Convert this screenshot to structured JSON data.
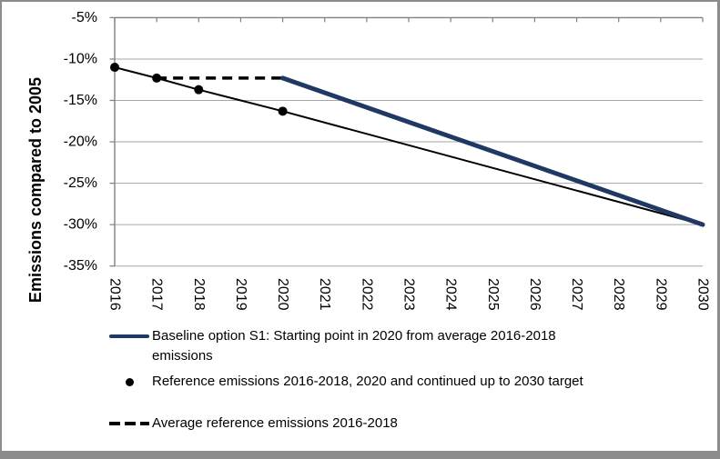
{
  "chart_data": {
    "type": "line",
    "title": "",
    "xlabel": "",
    "ylabel": "Emissions compared to 2005",
    "xlim": [
      2016,
      2030
    ],
    "ylim": [
      -35,
      -5
    ],
    "x_ticks": [
      2016,
      2017,
      2018,
      2019,
      2020,
      2021,
      2022,
      2023,
      2024,
      2025,
      2026,
      2027,
      2028,
      2029,
      2030
    ],
    "x_tick_labels": [
      "2016",
      "2017",
      "2018",
      "2019",
      "2020",
      "2021",
      "2022",
      "2023",
      "2024",
      "2025",
      "2026",
      "2027",
      "2028",
      "2029",
      "2030"
    ],
    "y_ticks": [
      -5,
      -10,
      -15,
      -20,
      -25,
      -30,
      -35
    ],
    "y_tick_labels": [
      "-5%",
      "-10%",
      "-15%",
      "-20%",
      "-25%",
      "-30%",
      "-35%"
    ],
    "grid": true,
    "legend_position": "bottom",
    "axis_color": "#808080",
    "grid_color": "#A6A6A6",
    "series": [
      {
        "id": "baseline",
        "name": "Baseline option S1: Starting point in 2020 from average 2016-2018 emissions",
        "color": "#1F3864",
        "line_width": 5,
        "dash": null,
        "points": [
          [
            2020,
            -12.3
          ],
          [
            2030,
            -30
          ]
        ],
        "markers": [],
        "marker_radius": 0
      },
      {
        "id": "reference",
        "name": "Reference emissions 2016-2018, 2020 and continued up to 2030 target",
        "color": "#000000",
        "line_width": 2,
        "dash": null,
        "points": [
          [
            2016,
            -11
          ],
          [
            2017,
            -12.3
          ],
          [
            2018,
            -13.7
          ],
          [
            2020,
            -16.3
          ],
          [
            2030,
            -30
          ]
        ],
        "markers": [
          [
            2016,
            -11
          ],
          [
            2017,
            -12.3
          ],
          [
            2018,
            -13.7
          ],
          [
            2020,
            -16.3
          ]
        ],
        "marker_radius": 5
      },
      {
        "id": "average",
        "name": "Average reference emissions 2016-2018",
        "color": "#000000",
        "line_width": 3.5,
        "dash": "11 7",
        "points": [
          [
            2017,
            -12.3
          ],
          [
            2020,
            -12.3
          ]
        ],
        "markers": [],
        "marker_radius": 0
      }
    ]
  }
}
